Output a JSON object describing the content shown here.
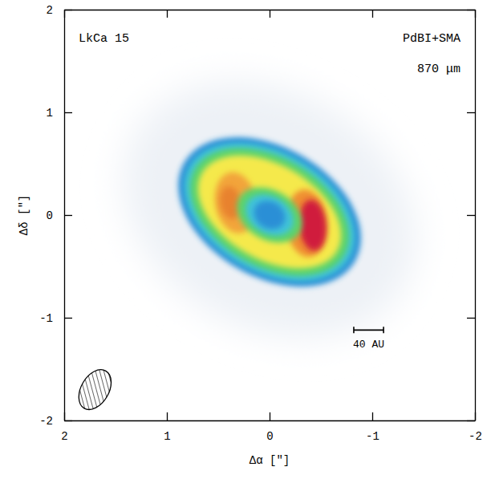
{
  "chart_data": {
    "type": "image",
    "object": "LkCa 15",
    "instrument": "PdBI+SMA",
    "wavelength": "870 μm",
    "xlabel": "Δα [″]",
    "ylabel": "Δδ [″]",
    "xlim": [
      2,
      -2
    ],
    "ylim": [
      -2,
      2
    ],
    "xticks": [
      2,
      1,
      0,
      -1,
      -2
    ],
    "yticks": [
      -2,
      -1,
      0,
      1,
      2
    ],
    "emission": [
      {
        "color": "#edf1f6",
        "x": 0,
        "y": 0.05,
        "major": 1.5,
        "minor": 1.15,
        "position_angle": 60
      },
      {
        "color": "#2a8fd6",
        "x": 0,
        "y": 0.03,
        "major": 0.96,
        "minor": 0.63,
        "position_angle": 60
      },
      {
        "color": "#3fc3d9",
        "x": 0,
        "y": 0.03,
        "major": 0.9,
        "minor": 0.58,
        "position_angle": 60
      },
      {
        "color": "#5bd36b",
        "x": 0,
        "y": 0.03,
        "major": 0.84,
        "minor": 0.53,
        "position_angle": 60
      },
      {
        "color": "#f5e94c",
        "x": 0,
        "y": 0.03,
        "major": 0.76,
        "minor": 0.46,
        "position_angle": 60
      },
      {
        "color": "#f2a43a",
        "x": 0.33,
        "y": 0.12,
        "major": 0.3,
        "minor": 0.2,
        "position_angle": 10
      },
      {
        "color": "#ef8f33",
        "x": -0.36,
        "y": -0.08,
        "major": 0.33,
        "minor": 0.2,
        "position_angle": 5
      },
      {
        "color": "#e8822e",
        "x": 0.38,
        "y": 0.12,
        "major": 0.16,
        "minor": 0.1,
        "position_angle": 10
      },
      {
        "color": "#d01a3c",
        "x": -0.42,
        "y": -0.1,
        "major": 0.25,
        "minor": 0.13,
        "position_angle": 5
      },
      {
        "color": "#5bd36b",
        "x": 0,
        "y": 0,
        "major": 0.34,
        "minor": 0.24,
        "position_angle": 60
      },
      {
        "color": "#3fc3d9",
        "x": 0,
        "y": 0,
        "major": 0.25,
        "minor": 0.18,
        "position_angle": 60
      },
      {
        "color": "#2a8fd6",
        "x": 0,
        "y": 0,
        "major": 0.16,
        "minor": 0.13,
        "position_angle": 60
      }
    ],
    "beam": {
      "major": 0.42,
      "minor": 0.27,
      "position_angle": -30
    },
    "scale_bar": {
      "label": "40 AU",
      "length": 0.29
    }
  }
}
